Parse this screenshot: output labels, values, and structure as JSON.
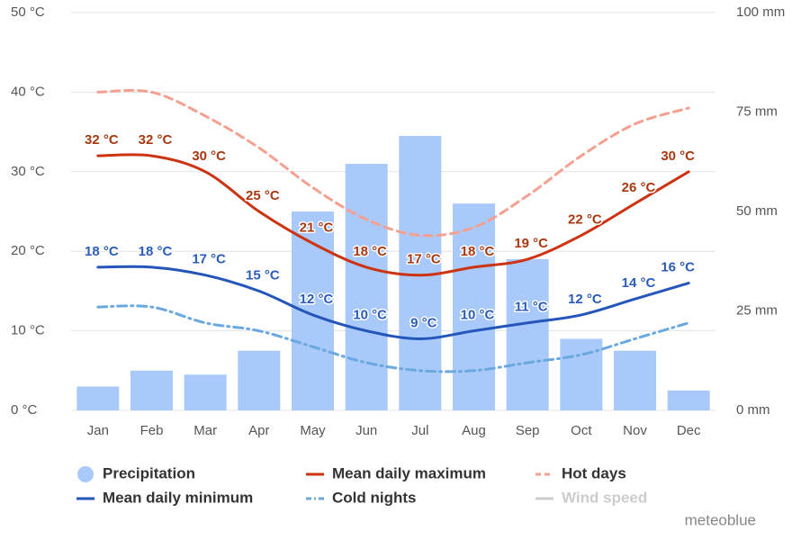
{
  "chart_data": {
    "type": "combo",
    "categories": [
      "Jan",
      "Feb",
      "Mar",
      "Apr",
      "May",
      "Jun",
      "Jul",
      "Aug",
      "Sep",
      "Oct",
      "Nov",
      "Dec"
    ],
    "ylim": [
      0,
      50
    ],
    "yticks": [
      {
        "value": 0,
        "label": "0 °C"
      },
      {
        "value": 10,
        "label": "10 °C"
      },
      {
        "value": 20,
        "label": "20 °C"
      },
      {
        "value": 30,
        "label": "30 °C"
      },
      {
        "value": 40,
        "label": "40 °C"
      },
      {
        "value": 50,
        "label": "50 °C"
      }
    ],
    "y2lim": [
      0,
      100
    ],
    "y2ticks": [
      {
        "value": 0,
        "label": "0 mm"
      },
      {
        "value": 25,
        "label": "25 mm"
      },
      {
        "value": 50,
        "label": "50 mm"
      },
      {
        "value": 75,
        "label": "75 mm"
      },
      {
        "value": 100,
        "label": "100 mm"
      }
    ],
    "grid": true,
    "series": [
      {
        "name": "Precipitation",
        "type": "bar",
        "axis": "y2",
        "color": "#a9c9fb",
        "values": [
          6,
          10,
          9,
          15,
          50,
          62,
          69,
          52,
          38,
          18,
          15,
          5
        ]
      },
      {
        "name": "Mean daily maximum",
        "type": "line",
        "color": "#cc3311",
        "label_color": "#a8380f",
        "style": "solid",
        "values": [
          32,
          32,
          30,
          25,
          21,
          18,
          17,
          18,
          19,
          22,
          26,
          30
        ],
        "value_labels": [
          "32 °C",
          "32 °C",
          "30 °C",
          "25 °C",
          "21 °C",
          "18 °C",
          "17 °C",
          "18 °C",
          "19 °C",
          "22 °C",
          "26 °C",
          "30 °C"
        ]
      },
      {
        "name": "Hot days",
        "type": "line",
        "color": "#f4a090",
        "style": "dash",
        "values": [
          40,
          40,
          37,
          33,
          28,
          24,
          22,
          23,
          27,
          32,
          36,
          38
        ]
      },
      {
        "name": "Mean daily minimum",
        "type": "line",
        "color": "#2356b8",
        "label_color": "#2a5cb8",
        "style": "solid",
        "values": [
          18,
          18,
          17,
          15,
          12,
          10,
          9,
          10,
          11,
          12,
          14,
          16
        ],
        "value_labels": [
          "18 °C",
          "18 °C",
          "17 °C",
          "15 °C",
          "12 °C",
          "10 °C",
          "9 °C",
          "10 °C",
          "11 °C",
          "12 °C",
          "14 °C",
          "16 °C"
        ]
      },
      {
        "name": "Cold nights",
        "type": "line",
        "color": "#6aa8e0",
        "style": "dashdot",
        "values": [
          13,
          13,
          11,
          10,
          8,
          6,
          5,
          5,
          6,
          7,
          9,
          11
        ]
      },
      {
        "name": "Wind speed",
        "type": "line",
        "color": "#cccccc",
        "hidden": true
      }
    ],
    "credit": "meteoblue"
  }
}
